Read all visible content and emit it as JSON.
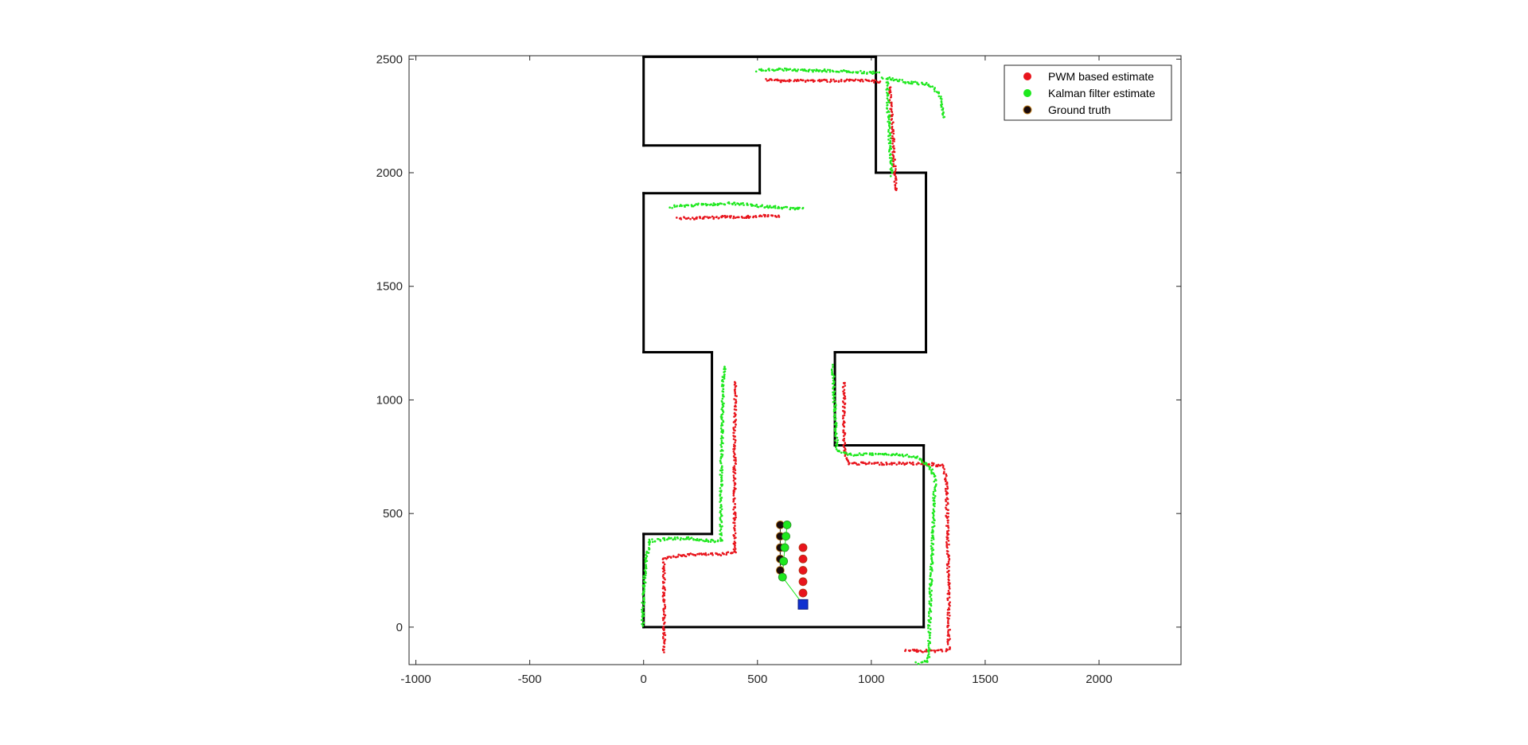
{
  "chart_data": {
    "type": "scatter",
    "title": "",
    "xlabel": "",
    "ylabel": "",
    "xlim": [
      -1030,
      2360
    ],
    "ylim": [
      -165,
      2515
    ],
    "xticks": [
      -1000,
      -500,
      0,
      500,
      1000,
      1500,
      2000
    ],
    "yticks": [
      0,
      500,
      1000,
      1500,
      2000,
      2500
    ],
    "grid": false,
    "legend_placement": "top-right",
    "colors": {
      "pwm": "#e8141c",
      "kalman": "#1ee81e",
      "truth": "#1a0a0a",
      "wall": "#000000",
      "marker": "#1030d0"
    },
    "wall_outline": {
      "x": [
        0,
        0,
        250,
        250,
        0,
        0,
        300,
        300,
        0,
        0,
        1250,
        1250,
        1030,
        1030,
        1250,
        1250,
        840,
        840,
        1240,
        1240,
        0
      ],
      "y": [
        0,
        400,
        400,
        1200,
        1200,
        1910,
        1910,
        2110,
        2110,
        2510,
        2510,
        2000,
        2000,
        1200,
        1200,
        800,
        800,
        1200,
        1200,
        0,
        0
      ]
    },
    "wall_segments": [
      {
        "x": [
          0,
          0
        ],
        "y": [
          0,
          410
        ]
      },
      {
        "x": [
          0,
          300
        ],
        "y": [
          410,
          410
        ]
      },
      {
        "x": [
          300,
          300
        ],
        "y": [
          410,
          1210
        ]
      },
      {
        "x": [
          300,
          0
        ],
        "y": [
          1210,
          1210
        ]
      },
      {
        "x": [
          0,
          0
        ],
        "y": [
          1210,
          1910
        ]
      },
      {
        "x": [
          0,
          510
        ],
        "y": [
          1910,
          1910
        ]
      },
      {
        "x": [
          510,
          510
        ],
        "y": [
          1910,
          2120
        ]
      },
      {
        "x": [
          510,
          0
        ],
        "y": [
          2120,
          2120
        ]
      },
      {
        "x": [
          0,
          0
        ],
        "y": [
          2120,
          2510
        ]
      },
      {
        "x": [
          0,
          1020
        ],
        "y": [
          2510,
          2510
        ]
      },
      {
        "x": [
          1020,
          1020
        ],
        "y": [
          2510,
          2000
        ]
      },
      {
        "x": [
          1020,
          1240
        ],
        "y": [
          2000,
          2000
        ]
      },
      {
        "x": [
          1240,
          1240
        ],
        "y": [
          2000,
          1210
        ]
      },
      {
        "x": [
          1240,
          840
        ],
        "y": [
          1210,
          1210
        ]
      },
      {
        "x": [
          840,
          840
        ],
        "y": [
          1210,
          800
        ]
      },
      {
        "x": [
          840,
          1230
        ],
        "y": [
          800,
          800
        ]
      },
      {
        "x": [
          1230,
          1230
        ],
        "y": [
          800,
          0
        ]
      },
      {
        "x": [
          1230,
          0
        ],
        "y": [
          0,
          0
        ]
      }
    ],
    "series": [
      {
        "name": "PWM based estimate",
        "tracks": [
          {
            "x": [
              90,
              90,
              90,
              90,
              110,
              160,
              230,
              330,
              400,
              400,
              400,
              405
            ],
            "y": [
              -110,
              0,
              150,
              300,
              310,
              315,
              320,
              320,
              330,
              600,
              900,
              1080
            ]
          },
          {
            "x": [
              880,
              880,
              880,
              890,
              900,
              960,
              1050,
              1150,
              1240,
              1310,
              1330,
              1335,
              1340,
              1340,
              1300,
              1200,
              1150
            ],
            "y": [
              1080,
              950,
              820,
              740,
              720,
              720,
              720,
              720,
              720,
              710,
              650,
              400,
              150,
              -100,
              -105,
              -105,
              -105
            ]
          },
          {
            "x": [
              540,
              600,
              700,
              800,
              900,
              980,
              1040
            ],
            "y": [
              2410,
              2405,
              2405,
              2405,
              2405,
              2405,
              2400
            ]
          },
          {
            "x": [
              1080,
              1090,
              1095,
              1100,
              1105,
              1110
            ],
            "y": [
              2380,
              2250,
              2150,
              2050,
              1980,
              1920
            ]
          },
          {
            "x": [
              150,
              250,
              350,
              450,
              550,
              600
            ],
            "y": [
              1800,
              1800,
              1805,
              1805,
              1810,
              1810
            ]
          }
        ],
        "points": {
          "x": [
            700,
            700,
            700,
            700,
            700,
            700
          ],
          "y": [
            350,
            300,
            250,
            200,
            150,
            100
          ]
        }
      },
      {
        "name": "Kalman filter estimate",
        "tracks": [
          {
            "x": [
              -5,
              0,
              10,
              30,
              120,
              200,
              300,
              340,
              340,
              345,
              350,
              360
            ],
            "y": [
              0,
              150,
              300,
              380,
              390,
              390,
              380,
              380,
              600,
              900,
              1100,
              1150
            ]
          },
          {
            "x": [
              830,
              840,
              850,
              900,
              1000,
              1100,
              1200,
              1260,
              1280,
              1270,
              1260,
              1250,
              1200
            ],
            "y": [
              1150,
              950,
              780,
              760,
              760,
              760,
              750,
              700,
              650,
              400,
              150,
              -150,
              -160
            ]
          },
          {
            "x": [
              500,
              600,
              700,
              800,
              900,
              1000,
              1030
            ],
            "y": [
              2450,
              2455,
              2450,
              2450,
              2445,
              2440,
              2440
            ]
          },
          {
            "x": [
              1050,
              1150,
              1250,
              1300,
              1320
            ],
            "y": [
              2420,
              2400,
              2390,
              2350,
              2240
            ]
          },
          {
            "x": [
              1070,
              1075,
              1080,
              1085,
              1090
            ],
            "y": [
              2400,
              2250,
              2150,
              2050,
              1990
            ]
          },
          {
            "x": [
              120,
              250,
              400,
              550,
              700
            ],
            "y": [
              1850,
              1860,
              1865,
              1850,
              1840
            ]
          }
        ],
        "points": {
          "x": [
            630,
            625,
            620,
            615,
            610
          ],
          "y": [
            450,
            400,
            350,
            290,
            220
          ]
        }
      },
      {
        "name": "Ground truth",
        "points": {
          "x": [
            600,
            600,
            600,
            600,
            600
          ],
          "y": [
            450,
            400,
            350,
            300,
            250
          ]
        }
      }
    ],
    "start_marker": {
      "x": 700,
      "y": 100
    }
  }
}
